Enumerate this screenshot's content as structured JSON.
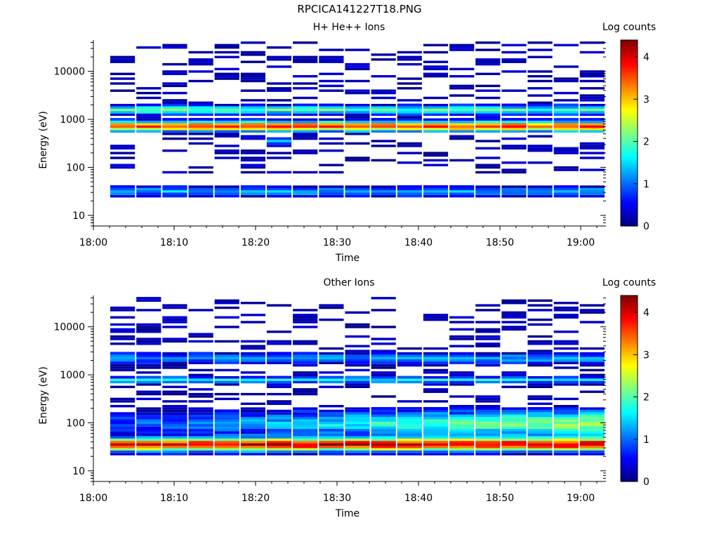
{
  "figure": {
    "title": "RPCICA141227T18.PNG"
  },
  "chart_data": [
    {
      "type": "heatmap",
      "title": "H+ He++ Ions",
      "xlabel": "Time",
      "ylabel": "Energy (eV)",
      "x_ticks": [
        "18:00",
        "18:10",
        "18:20",
        "18:30",
        "18:40",
        "18:50",
        "19:00"
      ],
      "y_ticks": [
        "10",
        "100",
        "1000",
        "10000"
      ],
      "y_scale": "log",
      "ylim": [
        6,
        45000
      ],
      "colorbar": {
        "label": "Log counts",
        "ticks": [
          "0",
          "1",
          "2",
          "3",
          "4"
        ],
        "range": [
          0,
          4.4
        ]
      },
      "time_bins": [
        "18:02",
        "18:05",
        "18:08",
        "18:12",
        "18:15",
        "18:18",
        "18:22",
        "18:25",
        "18:28",
        "18:32",
        "18:35",
        "18:38",
        "18:42",
        "18:45",
        "18:48",
        "18:52",
        "18:55",
        "18:58",
        "19:02"
      ],
      "features": [
        {
          "band": "main peak",
          "energy_eV": [
            550,
            900
          ],
          "log_counts": 3.6
        },
        {
          "band": "upper shoulder",
          "energy_eV": [
            1200,
            1900
          ],
          "log_counts": 1.8
        },
        {
          "band": "low-energy band",
          "energy_eV": [
            25,
            50
          ],
          "log_counts": 1.2
        },
        {
          "band": "sparse background",
          "energy_eV": [
            100,
            40000
          ],
          "log_counts": 0.2
        }
      ]
    },
    {
      "type": "heatmap",
      "title": "Other Ions",
      "xlabel": "Time",
      "ylabel": "Energy (eV)",
      "x_ticks": [
        "18:00",
        "18:10",
        "18:20",
        "18:30",
        "18:40",
        "18:50",
        "19:00"
      ],
      "y_ticks": [
        "10",
        "100",
        "1000",
        "10000"
      ],
      "y_scale": "log",
      "ylim": [
        6,
        45000
      ],
      "colorbar": {
        "label": "Log counts",
        "ticks": [
          "0",
          "1",
          "2",
          "3",
          "4"
        ],
        "range": [
          0,
          4.4
        ]
      },
      "time_bins": [
        "18:02",
        "18:05",
        "18:08",
        "18:12",
        "18:15",
        "18:18",
        "18:22",
        "18:25",
        "18:28",
        "18:32",
        "18:35",
        "18:38",
        "18:42",
        "18:45",
        "18:48",
        "18:52",
        "18:55",
        "18:58",
        "19:02"
      ],
      "features": [
        {
          "band": "main peak",
          "energy_eV": [
            25,
            50
          ],
          "log_counts": 3.8
        },
        {
          "band": "rising shoulder",
          "energy_eV": [
            60,
            200
          ],
          "log_counts": 1.5
        },
        {
          "band": "mid band",
          "energy_eV": [
            600,
            1000
          ],
          "log_counts": 1.6
        },
        {
          "band": "upper band",
          "energy_eV": [
            1500,
            3800
          ],
          "log_counts": 1.0
        }
      ]
    }
  ]
}
